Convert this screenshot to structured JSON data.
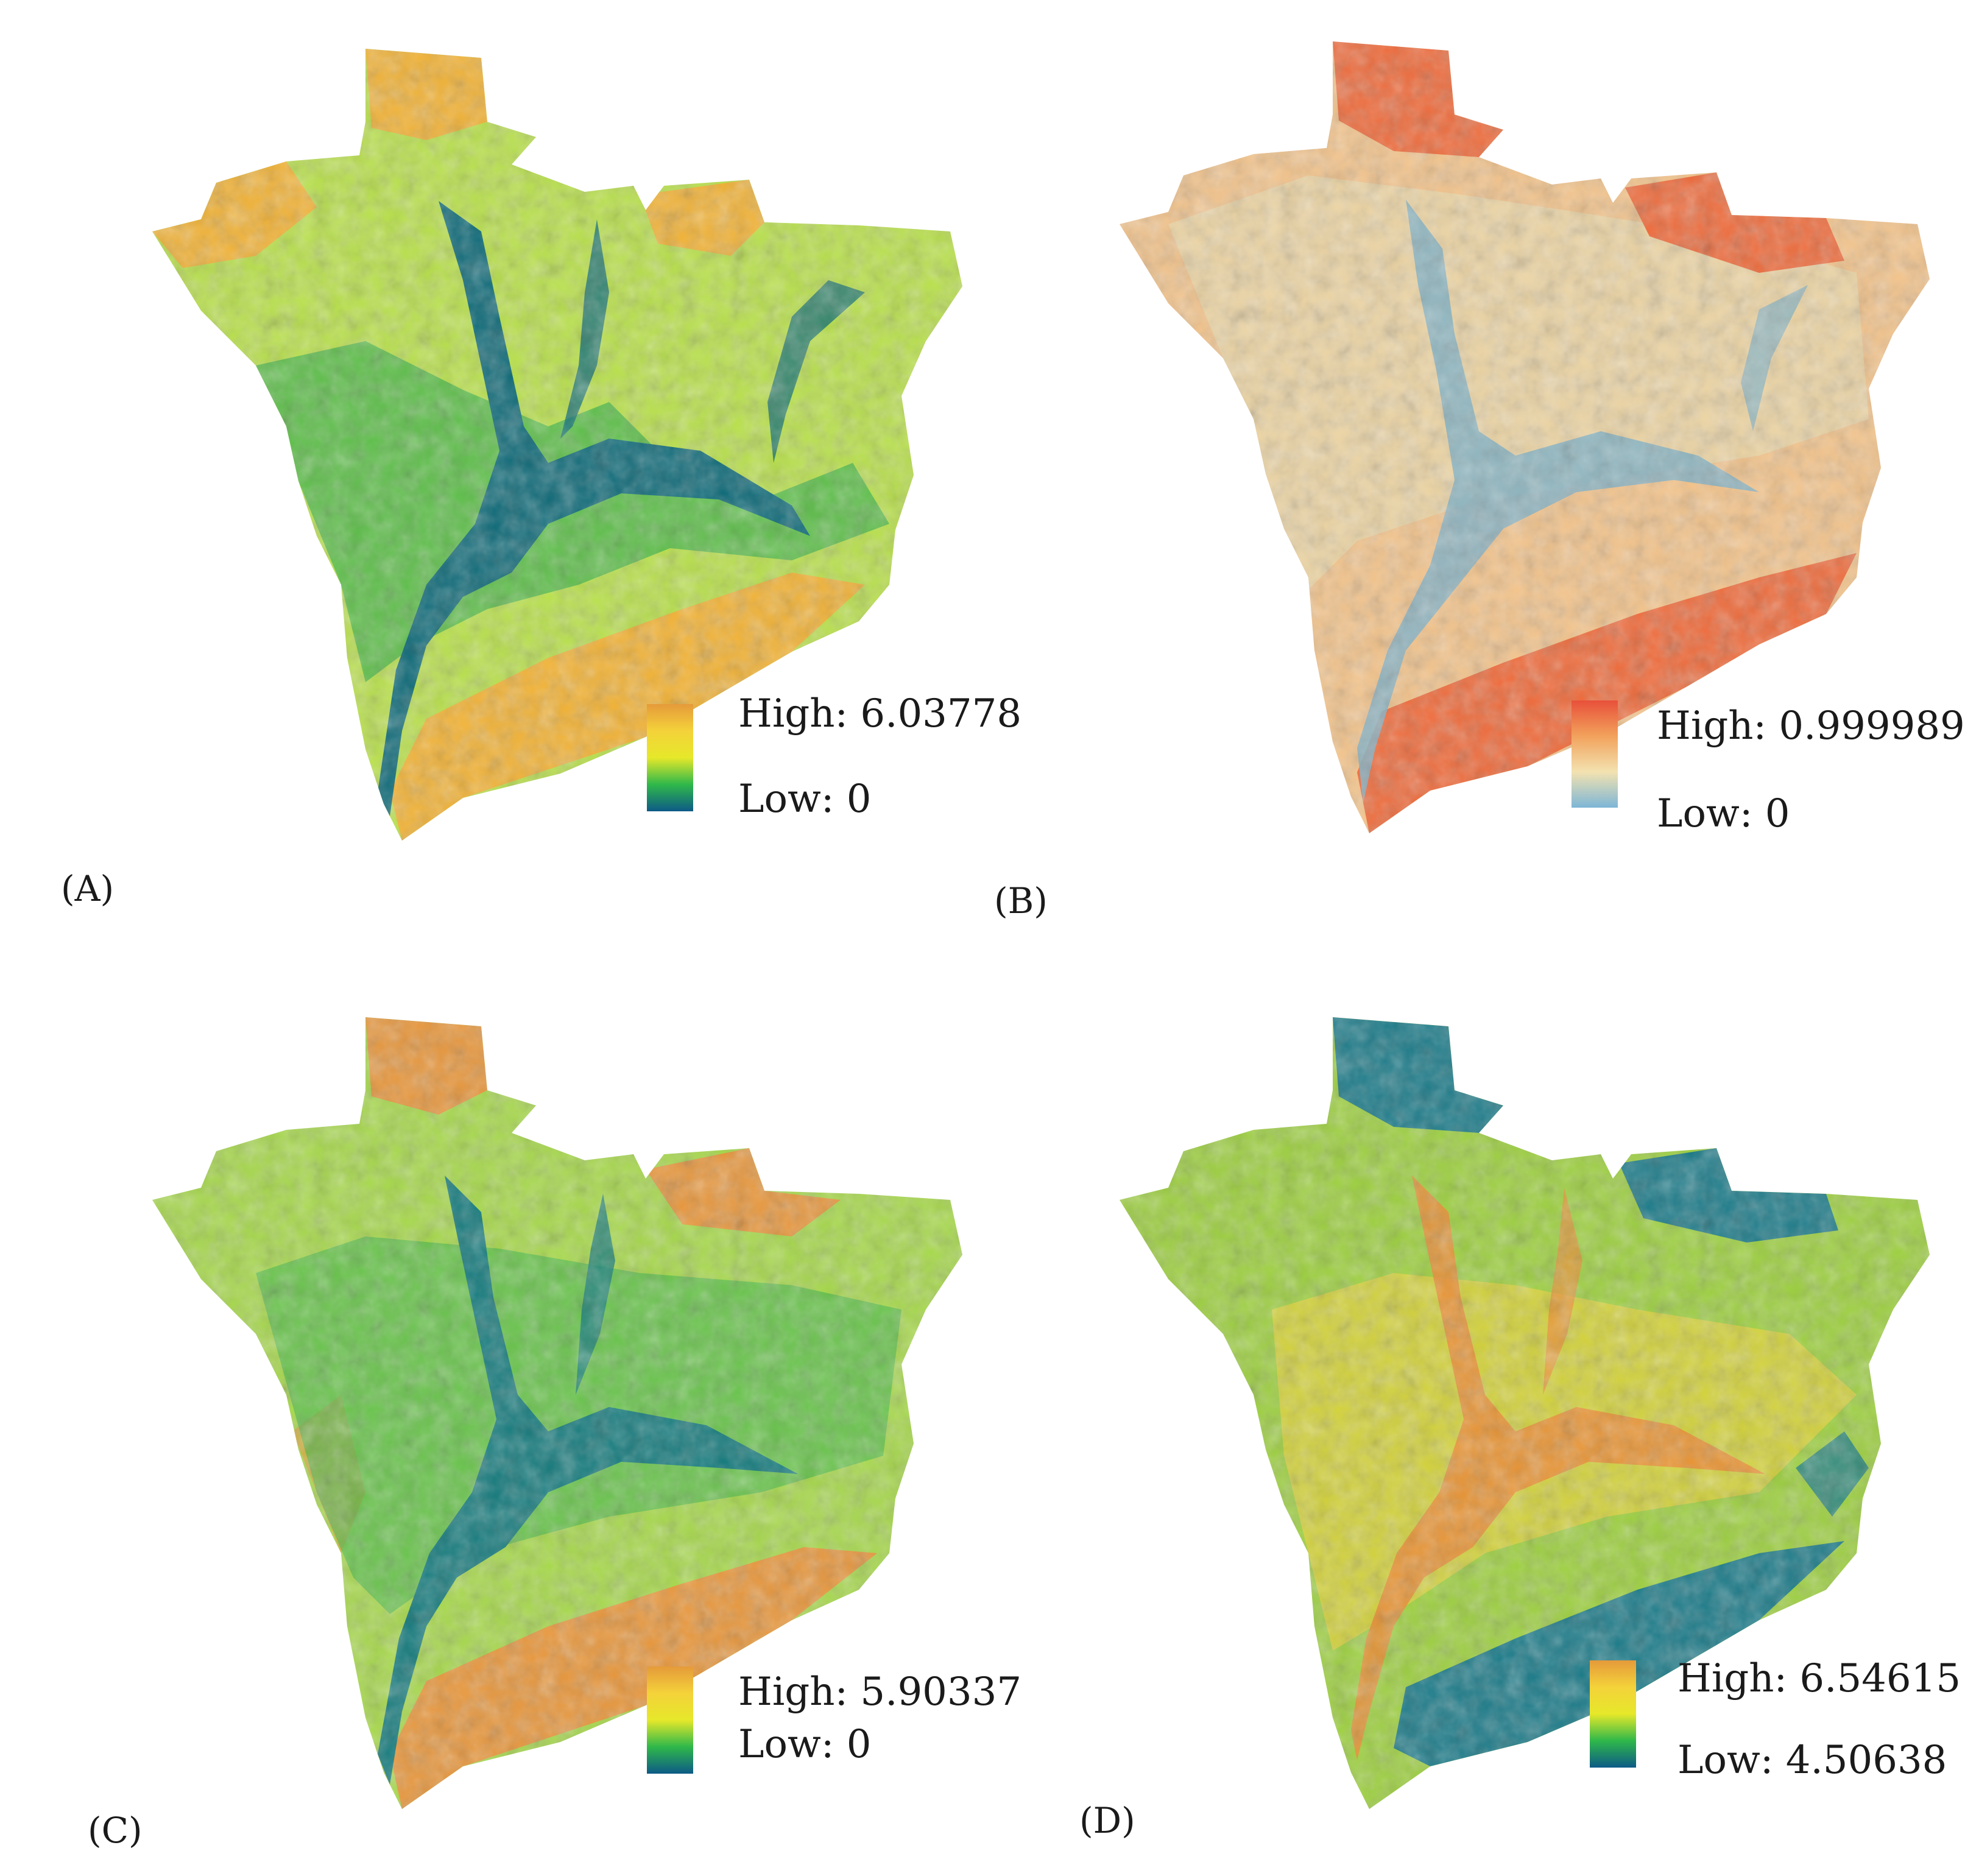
{
  "panels": [
    {
      "id": "A",
      "label": "(A)",
      "legend": {
        "high": "High: 6.03778",
        "low": "Low: 0"
      },
      "colors": {
        "base": "#b8e04a",
        "low": "#0e6a78",
        "mid": "#3fb34a",
        "high": "#f2b234"
      },
      "colormap": [
        "#e59a3a",
        "#f4d23a",
        "#e6e82a",
        "#2fb84a",
        "#0d5a86"
      ]
    },
    {
      "id": "B",
      "label": "(B)",
      "legend": {
        "high": "High: 0.999989",
        "low": "Low: 0"
      },
      "colors": {
        "base": "#f3c38a",
        "low": "#7fb0c6",
        "mid": "#e8dcae",
        "high": "#ef6a3a"
      },
      "colormap": [
        "#e8503a",
        "#f2a25c",
        "#f3e2b0",
        "#7db6d6"
      ]
    },
    {
      "id": "C",
      "label": "(C)",
      "legend": {
        "high": "High: 5.90337",
        "low": "Low: 0"
      },
      "colors": {
        "base": "#a6d84a",
        "low": "#147a7c",
        "mid": "#3fb54c",
        "high": "#e8963a"
      },
      "colormap": [
        "#e59a3a",
        "#f4d23a",
        "#e6e82a",
        "#2fb84a",
        "#0d5a86"
      ]
    },
    {
      "id": "D",
      "label": "(D)",
      "legend": {
        "high": "High: 6.54615",
        "low": "Low: 4.50638"
      },
      "colors": {
        "base": "#9ccf3e",
        "low": "#1a7a88",
        "mid": "#e4d23a",
        "high": "#ec8a34"
      },
      "colormap": [
        "#e59a3a",
        "#f4d23a",
        "#e6e82a",
        "#2fb84a",
        "#0d5a86"
      ]
    }
  ]
}
